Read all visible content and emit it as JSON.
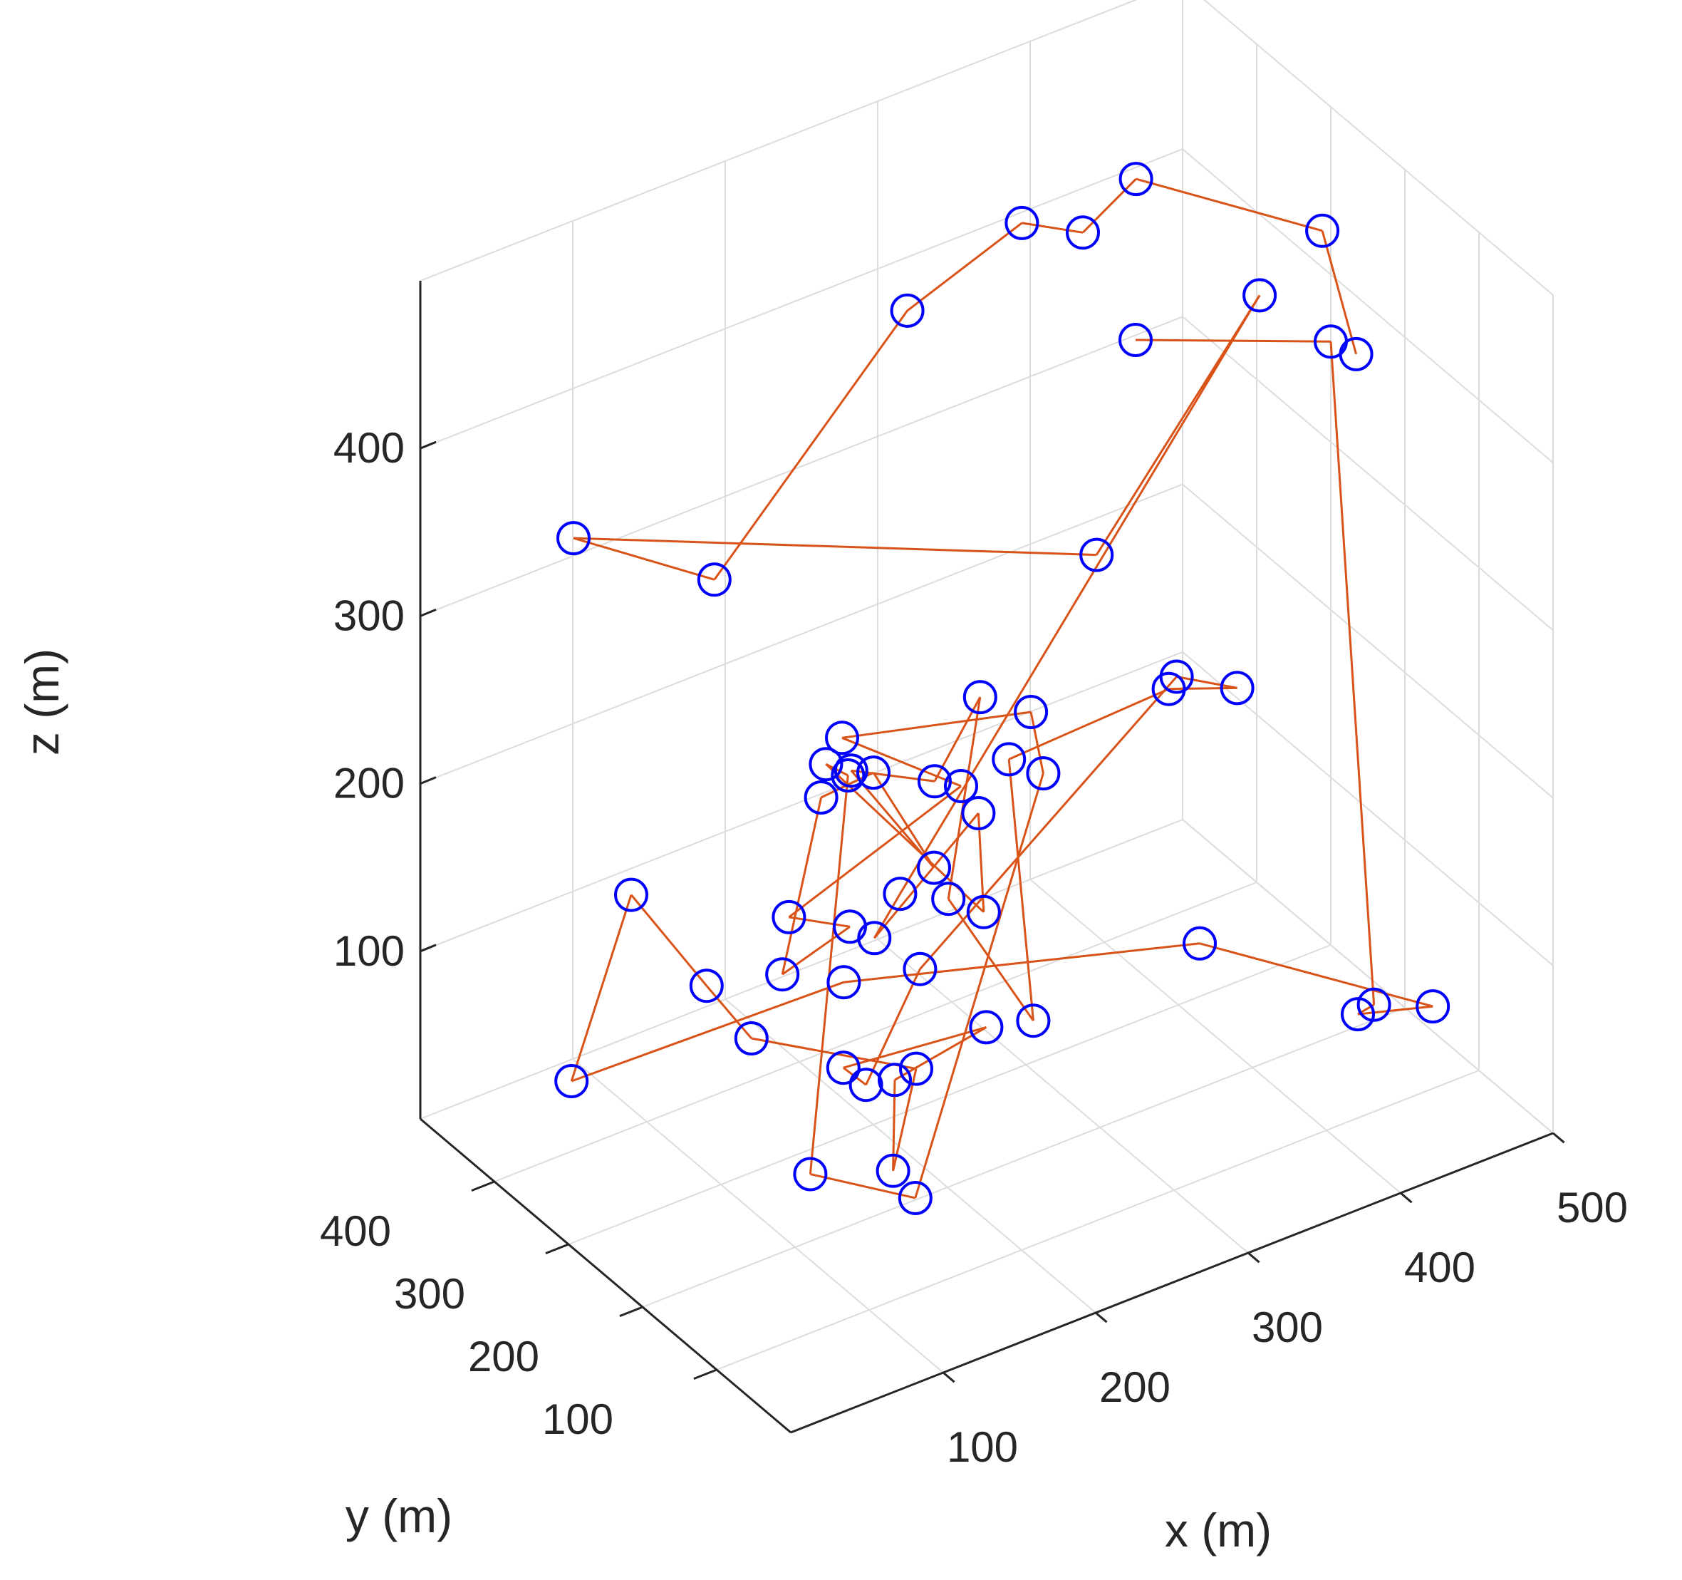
{
  "chart_data": {
    "type": "scatter3d_path",
    "xlabel": "x (m)",
    "ylabel": "y (m)",
    "zlabel": "z (m)",
    "xlim": [
      0,
      500
    ],
    "ylim": [
      0,
      500
    ],
    "zlim": [
      0,
      500
    ],
    "xticks": [
      100,
      200,
      300,
      400,
      500
    ],
    "yticks": [
      100,
      200,
      300,
      400
    ],
    "zticks": [
      100,
      200,
      300,
      400
    ],
    "grid": true,
    "colors": {
      "line": "#d95319",
      "marker": "#0000ff",
      "axis": "#262626",
      "grid": "#dcdcdc"
    },
    "points": [
      {
        "x": 400,
        "y": 60,
        "z": 478
      },
      {
        "x": 475,
        "y": 260,
        "z": 450
      },
      {
        "x": 450,
        "y": 460,
        "z": 415
      },
      {
        "x": 420,
        "y": 470,
        "z": 390
      },
      {
        "x": 380,
        "y": 470,
        "z": 410
      },
      {
        "x": 300,
        "y": 460,
        "z": 390
      },
      {
        "x": 120,
        "y": 350,
        "z": 335
      },
      {
        "x": 30,
        "y": 355,
        "z": 390
      },
      {
        "x": 220,
        "y": 40,
        "z": 430
      },
      {
        "x": 395,
        "y": 180,
        "z": 470
      },
      {
        "x": 130,
        "y": 120,
        "z": 230
      },
      {
        "x": 135,
        "y": 165,
        "z": 185
      },
      {
        "x": 230,
        "y": 220,
        "z": 205
      },
      {
        "x": 180,
        "y": 110,
        "z": 205
      },
      {
        "x": 130,
        "y": 220,
        "z": 270
      },
      {
        "x": 125,
        "y": 180,
        "z": 280
      },
      {
        "x": 110,
        "y": 200,
        "z": 40
      },
      {
        "x": 140,
        "y": 120,
        "z": 45
      },
      {
        "x": 360,
        "y": 400,
        "z": 115
      },
      {
        "x": 245,
        "y": 180,
        "z": 275
      },
      {
        "x": 160,
        "y": 260,
        "z": 260
      },
      {
        "x": 170,
        "y": 120,
        "z": 280
      },
      {
        "x": 130,
        "y": 270,
        "z": 160
      },
      {
        "x": 170,
        "y": 270,
        "z": 140
      },
      {
        "x": 150,
        "y": 320,
        "z": 100
      },
      {
        "x": 190,
        "y": 350,
        "z": 180
      },
      {
        "x": 200,
        "y": 300,
        "z": 210
      },
      {
        "x": 230,
        "y": 280,
        "z": 150
      },
      {
        "x": 200,
        "y": 330,
        "z": 200
      },
      {
        "x": 245,
        "y": 310,
        "z": 185
      },
      {
        "x": 270,
        "y": 300,
        "z": 230
      },
      {
        "x": 220,
        "y": 240,
        "z": 150
      },
      {
        "x": 300,
        "y": 290,
        "z": 30
      },
      {
        "x": 250,
        "y": 220,
        "z": 230
      },
      {
        "x": 350,
        "y": 210,
        "z": 240
      },
      {
        "x": 390,
        "y": 200,
        "z": 230
      },
      {
        "x": 360,
        "y": 220,
        "z": 240
      },
      {
        "x": 250,
        "y": 340,
        "z": 60
      },
      {
        "x": 200,
        "y": 310,
        "z": 20
      },
      {
        "x": 190,
        "y": 320,
        "z": 30
      },
      {
        "x": 240,
        "y": 230,
        "z": 70
      },
      {
        "x": 180,
        "y": 230,
        "z": 60
      },
      {
        "x": 140,
        "y": 150,
        "z": 50
      },
      {
        "x": 160,
        "y": 160,
        "z": 100
      },
      {
        "x": 120,
        "y": 300,
        "z": 80
      },
      {
        "x": 110,
        "y": 340,
        "z": 100
      },
      {
        "x": 80,
        "y": 380,
        "z": 150
      },
      {
        "x": 70,
        "y": 440,
        "z": 20
      },
      {
        "x": 200,
        "y": 340,
        "z": 70
      },
      {
        "x": 380,
        "y": 230,
        "z": 70
      },
      {
        "x": 460,
        "y": 80,
        "z": 60
      },
      {
        "x": 440,
        "y": 140,
        "z": 40
      },
      {
        "x": 470,
        "y": 180,
        "z": 20
      },
      {
        "x": 500,
        "y": 300,
        "z": 360
      },
      {
        "x": 440,
        "y": 440,
        "z": 330
      }
    ]
  }
}
